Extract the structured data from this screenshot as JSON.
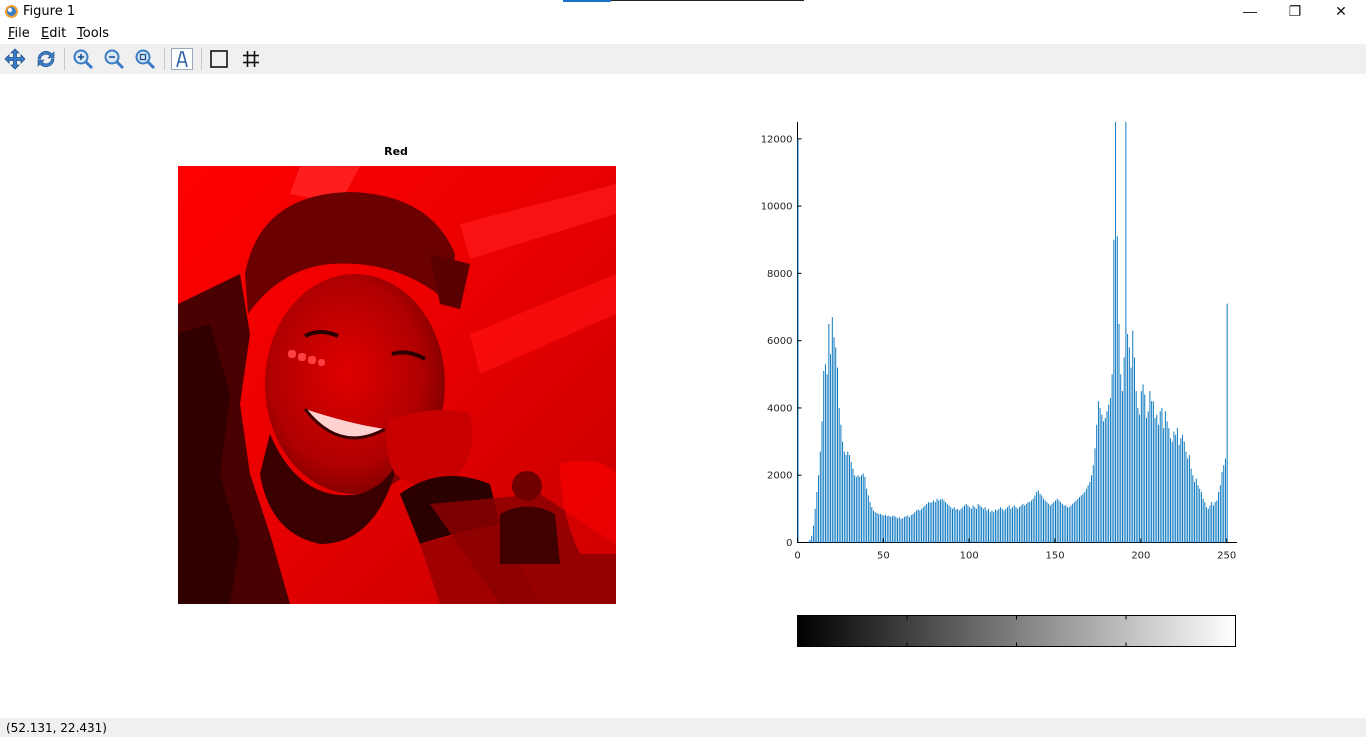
{
  "window": {
    "title": "Figure 1",
    "minimize_glyph": "—",
    "maximize_glyph": "❐",
    "close_glyph": "✕"
  },
  "menu": {
    "items": [
      {
        "label_first": "F",
        "label_rest": "ile"
      },
      {
        "label_first": "E",
        "label_rest": "dit"
      },
      {
        "label_first": "T",
        "label_rest": "ools"
      }
    ]
  },
  "toolbar": {
    "tools": [
      "pan-icon",
      "rotate-icon",
      "zoom-in-icon",
      "zoom-out-icon",
      "zoom-reset-icon",
      "insert-text-icon",
      "axes-box-icon",
      "grid-icon"
    ]
  },
  "image_panel": {
    "title": "Red"
  },
  "chart_data": {
    "type": "bar",
    "xlim": [
      0,
      256
    ],
    "ylim": [
      0,
      12500
    ],
    "xticks": [
      "0",
      "50",
      "100",
      "150",
      "200",
      "250"
    ],
    "yticks": [
      "0",
      "2000",
      "4000",
      "6000",
      "8000",
      "10000",
      "12000"
    ],
    "grid": false,
    "values": [
      12000,
      0,
      0,
      0,
      0,
      0,
      30,
      80,
      200,
      500,
      1000,
      1500,
      2000,
      2700,
      3600,
      5100,
      5300,
      5000,
      6500,
      5600,
      6700,
      6100,
      5800,
      5200,
      4000,
      3500,
      3000,
      2700,
      2600,
      2700,
      2600,
      2400,
      2200,
      2000,
      1950,
      2000,
      1950,
      2000,
      2050,
      1950,
      1600,
      1400,
      1200,
      1050,
      950,
      900,
      880,
      850,
      850,
      820,
      800,
      820,
      780,
      800,
      760,
      780,
      800,
      760,
      720,
      750,
      700,
      720,
      760,
      780,
      800,
      750,
      820,
      850,
      900,
      950,
      980,
      950,
      1000,
      1050,
      1100,
      1150,
      1200,
      1180,
      1200,
      1250,
      1200,
      1300,
      1250,
      1280,
      1300,
      1250,
      1200,
      1150,
      1100,
      1050,
      1000,
      1050,
      980,
      1000,
      950,
      1000,
      1050,
      1100,
      1150,
      1100,
      1050,
      1000,
      1100,
      1050,
      1000,
      1150,
      1100,
      1050,
      1000,
      1050,
      950,
      1000,
      900,
      950,
      900,
      980,
      950,
      1000,
      1050,
      1000,
      950,
      1000,
      1050,
      1100,
      1000,
      1050,
      1100,
      1050,
      1000,
      1050,
      1100,
      1150,
      1100,
      1150,
      1200,
      1200,
      1250,
      1300,
      1400,
      1500,
      1550,
      1450,
      1400,
      1300,
      1250,
      1200,
      1150,
      1100,
      1150,
      1200,
      1250,
      1300,
      1250,
      1200,
      1150,
      1100,
      1100,
      1050,
      1050,
      1100,
      1150,
      1200,
      1250,
      1300,
      1350,
      1400,
      1450,
      1500,
      1600,
      1700,
      1800,
      2000,
      2300,
      2800,
      3500,
      4200,
      4000,
      3800,
      3600,
      3700,
      3900,
      4100,
      4300,
      5000,
      9000,
      12500,
      9100,
      6500,
      5000,
      4500,
      5500,
      12500,
      6200,
      5800,
      5200,
      6300,
      5500,
      4500,
      4000,
      3800,
      4500,
      4700,
      4400,
      3700,
      3900,
      4500,
      4200,
      4200,
      3700,
      3800,
      3500,
      3900,
      4000,
      3400,
      3900,
      3600,
      3400,
      3100,
      3000,
      3300,
      3200,
      3400,
      2900,
      3100,
      3200,
      3000,
      2700,
      2500,
      2600,
      2200,
      2000,
      1800,
      1900,
      1700,
      1600,
      1500,
      1300,
      1200,
      1050,
      1000,
      1100,
      1200,
      1100,
      1200,
      1250,
      1500,
      1700,
      2100,
      2300,
      2500,
      7100
    ]
  },
  "colorbar": {
    "ticks": [
      0.25,
      0.5,
      0.75
    ]
  },
  "status": {
    "coords": "(52.131, 22.431)"
  }
}
